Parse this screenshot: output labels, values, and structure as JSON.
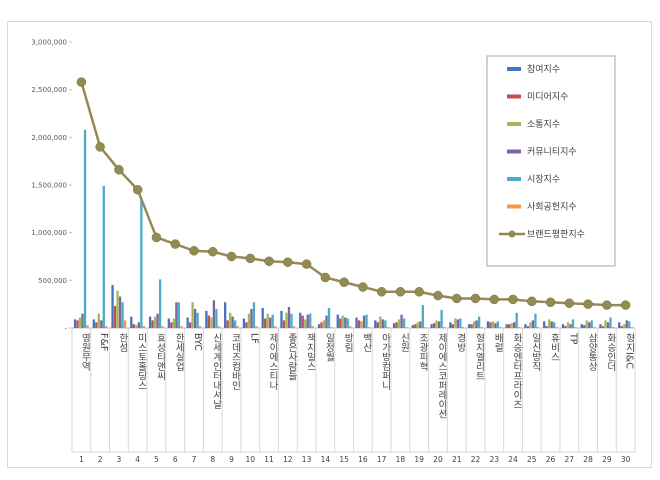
{
  "chart_data": {
    "type": "bar",
    "title": "",
    "xlabel": "",
    "ylabel": "",
    "ylim": [
      0,
      3000000
    ],
    "yticks": [
      0,
      500000,
      1000000,
      1500000,
      2000000,
      2500000,
      3000000
    ],
    "ytick_labels": [
      "-",
      "500,000",
      "1,000,000",
      "1,500,000",
      "2,000,000",
      "2,500,000",
      "3,000,000"
    ],
    "grid": false,
    "legend_position": "right",
    "categories": [
      "영원무역",
      "F&F",
      "한섬",
      "미스토홀딩스",
      "효성티앤씨",
      "한세실업",
      "BYC",
      "신세계인터내셔날",
      "코데즈컴바인",
      "LF",
      "제이에스티나",
      "좋은사람들",
      "잭지밀스",
      "일정월",
      "방림",
      "백산",
      "아가방컴퍼니",
      "신원",
      "조광피혁",
      "제이에스코퍼레이션",
      "경방",
      "형지엘리트",
      "배럴",
      "화승엔터프라이즈",
      "일신방직",
      "휴비스",
      "TP",
      "삼양통상",
      "화승인더",
      "형지I&C"
    ],
    "ranks": [
      "1",
      "2",
      "3",
      "4",
      "5",
      "6",
      "7",
      "8",
      "9",
      "10",
      "11",
      "12",
      "13",
      "14",
      "15",
      "16",
      "17",
      "18",
      "19",
      "20",
      "21",
      "22",
      "23",
      "24",
      "25",
      "26",
      "27",
      "28",
      "29",
      "30"
    ],
    "series": [
      {
        "name": "참여지수",
        "type": "bar",
        "color": "#4472c4",
        "values": [
          90000,
          90000,
          450000,
          120000,
          120000,
          100000,
          110000,
          180000,
          270000,
          100000,
          210000,
          180000,
          160000,
          40000,
          140000,
          110000,
          80000,
          50000,
          30000,
          40000,
          60000,
          40000,
          70000,
          40000,
          40000,
          70000,
          40000,
          40000,
          40000,
          60000
        ]
      },
      {
        "name": "미디어지수",
        "type": "bar",
        "color": "#c0504d",
        "values": [
          80000,
          60000,
          230000,
          40000,
          80000,
          60000,
          60000,
          130000,
          80000,
          60000,
          100000,
          80000,
          130000,
          60000,
          100000,
          80000,
          60000,
          60000,
          40000,
          50000,
          40000,
          40000,
          60000,
          40000,
          20000,
          20000,
          20000,
          30000,
          20000,
          20000
        ]
      },
      {
        "name": "소통지수",
        "type": "bar",
        "color": "#9bbb59",
        "values": [
          110000,
          150000,
          390000,
          30000,
          120000,
          100000,
          270000,
          110000,
          160000,
          150000,
          150000,
          160000,
          90000,
          80000,
          130000,
          70000,
          120000,
          90000,
          60000,
          80000,
          100000,
          70000,
          70000,
          50000,
          60000,
          90000,
          60000,
          80000,
          80000,
          40000
        ]
      },
      {
        "name": "커뮤니티지수",
        "type": "bar",
        "color": "#8064a2",
        "values": [
          150000,
          80000,
          330000,
          60000,
          150000,
          270000,
          200000,
          290000,
          120000,
          200000,
          110000,
          220000,
          140000,
          130000,
          110000,
          130000,
          90000,
          140000,
          70000,
          70000,
          90000,
          80000,
          50000,
          60000,
          80000,
          70000,
          40000,
          60000,
          60000,
          80000
        ]
      },
      {
        "name": "시장지수",
        "type": "bar",
        "color": "#4bacc6",
        "values": [
          2080000,
          1490000,
          270000,
          1360000,
          510000,
          270000,
          160000,
          200000,
          80000,
          270000,
          140000,
          150000,
          150000,
          210000,
          100000,
          140000,
          80000,
          100000,
          240000,
          190000,
          100000,
          120000,
          70000,
          160000,
          150000,
          60000,
          90000,
          80000,
          110000,
          70000
        ]
      },
      {
        "name": "사회공헌지수",
        "type": "bar",
        "color": "#f79646",
        "values": [
          30000,
          20000,
          80000,
          20000,
          20000,
          20000,
          20000,
          20000,
          20000,
          20000,
          20000,
          20000,
          20000,
          10000,
          20000,
          10000,
          10000,
          10000,
          10000,
          10000,
          10000,
          10000,
          10000,
          10000,
          10000,
          10000,
          10000,
          10000,
          10000,
          10000
        ]
      },
      {
        "name": "브랜드평판지수",
        "type": "line",
        "color": "#948a54",
        "values": [
          2580000,
          1900000,
          1660000,
          1450000,
          950000,
          880000,
          810000,
          800000,
          750000,
          730000,
          700000,
          690000,
          670000,
          530000,
          480000,
          430000,
          380000,
          380000,
          380000,
          340000,
          310000,
          310000,
          300000,
          300000,
          280000,
          270000,
          260000,
          250000,
          240000,
          240000
        ]
      }
    ]
  }
}
